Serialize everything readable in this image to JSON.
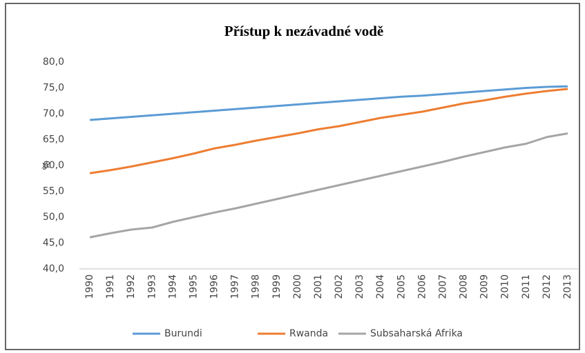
{
  "chart_data": {
    "type": "line",
    "title": "Přístup k nezávadné vodě",
    "y_label": "%",
    "categories": [
      "1990",
      "1991",
      "1992",
      "1993",
      "1994",
      "1995",
      "1996",
      "1997",
      "1998",
      "1999",
      "2000",
      "2001",
      "2002",
      "2003",
      "2004",
      "2005",
      "2006",
      "2007",
      "2008",
      "2009",
      "2010",
      "2011",
      "2012",
      "2013"
    ],
    "series": [
      {
        "name": "Burundi",
        "color": "#5b9bd5",
        "values": [
          68.8,
          69.1,
          69.4,
          69.7,
          70.0,
          70.3,
          70.6,
          70.9,
          71.2,
          71.5,
          71.8,
          72.1,
          72.4,
          72.7,
          73.0,
          73.3,
          73.5,
          73.8,
          74.1,
          74.4,
          74.7,
          75.0,
          75.2,
          75.3
        ]
      },
      {
        "name": "Rwanda",
        "color": "#ed7d31",
        "values": [
          58.5,
          59.1,
          59.8,
          60.6,
          61.4,
          62.3,
          63.3,
          64.0,
          64.8,
          65.5,
          66.2,
          67.0,
          67.6,
          68.4,
          69.2,
          69.8,
          70.4,
          71.2,
          72.0,
          72.6,
          73.3,
          73.9,
          74.4,
          74.8
        ]
      },
      {
        "name": "Subsaharská Afrika",
        "color": "#a5a5a5",
        "values": [
          46.1,
          46.9,
          47.6,
          48.0,
          49.1,
          50.0,
          50.9,
          51.7,
          52.6,
          53.5,
          54.4,
          55.3,
          56.2,
          57.1,
          58.0,
          58.9,
          59.8,
          60.7,
          61.7,
          62.6,
          63.5,
          64.2,
          65.5,
          66.2
        ]
      }
    ],
    "ylim": [
      40,
      80
    ],
    "yticks": [
      {
        "value": 40,
        "label": "40,0"
      },
      {
        "value": 45,
        "label": "45,0"
      },
      {
        "value": 50,
        "label": "50,0"
      },
      {
        "value": 55,
        "label": "55,0"
      },
      {
        "value": 60,
        "label": "60,0"
      },
      {
        "value": 65,
        "label": "65,0"
      },
      {
        "value": 70,
        "label": "70,0"
      },
      {
        "value": 75,
        "label": "75,0"
      },
      {
        "value": 80,
        "label": "80,0"
      }
    ],
    "grid": false,
    "legend": "bottom"
  }
}
